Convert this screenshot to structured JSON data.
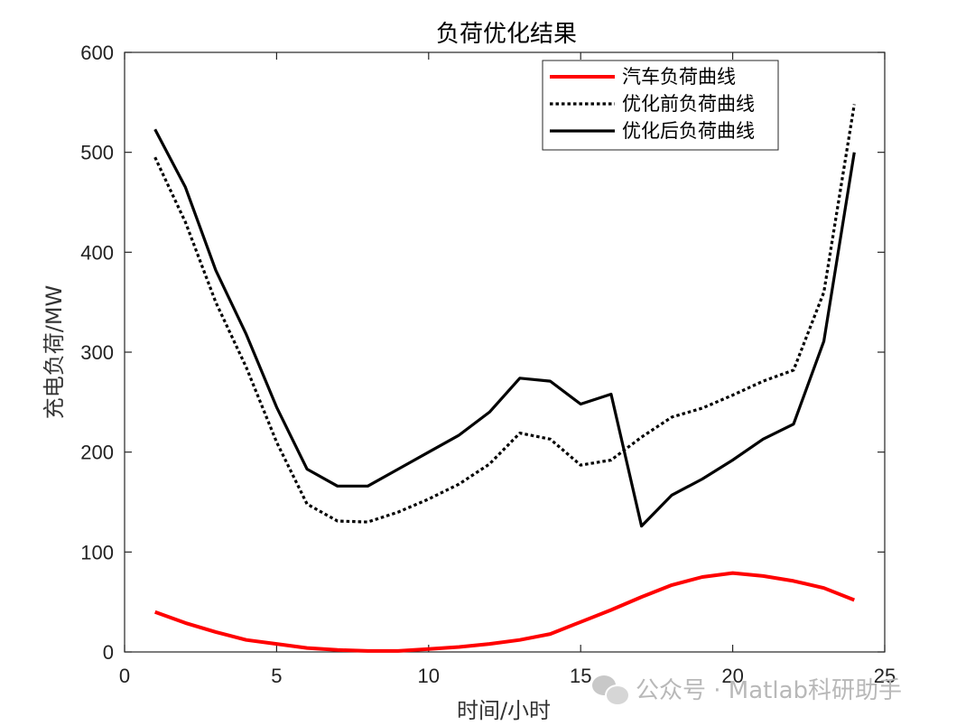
{
  "chart_data": {
    "type": "line",
    "title": "负荷优化结果",
    "xlabel": "时间/小时",
    "ylabel": "充电负荷/MW",
    "xlim": [
      0,
      25
    ],
    "ylim": [
      0,
      600
    ],
    "xticks": [
      0,
      5,
      10,
      15,
      20,
      25
    ],
    "yticks": [
      0,
      100,
      200,
      300,
      400,
      500,
      600
    ],
    "legend_position": "top-right",
    "x": [
      1,
      2,
      3,
      4,
      5,
      6,
      7,
      8,
      9,
      10,
      11,
      12,
      13,
      14,
      15,
      16,
      17,
      18,
      19,
      20,
      21,
      22,
      23,
      24
    ],
    "series": [
      {
        "name": "汽车负荷曲线",
        "color": "#ff0000",
        "style": "solid",
        "values": [
          40,
          29,
          20,
          12,
          8,
          4,
          2,
          1,
          1,
          3,
          5,
          8,
          12,
          18,
          30,
          42,
          55,
          67,
          75,
          79,
          76,
          71,
          64,
          52
        ]
      },
      {
        "name": "优化前负荷曲线",
        "color": "#000000",
        "style": "dotted",
        "values": [
          495,
          430,
          350,
          285,
          210,
          148,
          131,
          130,
          140,
          153,
          168,
          188,
          219,
          213,
          187,
          192,
          215,
          235,
          244,
          257,
          271,
          282,
          360,
          548
        ]
      },
      {
        "name": "优化后负荷曲线",
        "color": "#000000",
        "style": "solid",
        "values": [
          523,
          465,
          382,
          318,
          245,
          183,
          166,
          166,
          183,
          200,
          217,
          240,
          274,
          271,
          248,
          258,
          126,
          157,
          173,
          192,
          213,
          228,
          311,
          500
        ]
      }
    ]
  },
  "watermark": {
    "icon": "wechat-icon",
    "text": "公众号 · Matlab科研助手"
  }
}
